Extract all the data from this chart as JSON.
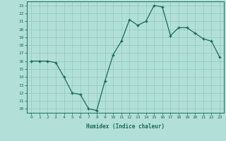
{
  "x": [
    0,
    1,
    2,
    3,
    4,
    5,
    6,
    7,
    8,
    9,
    10,
    11,
    12,
    13,
    14,
    15,
    16,
    17,
    18,
    19,
    20,
    21,
    22,
    23
  ],
  "y": [
    16,
    16,
    16,
    15.8,
    14,
    12,
    11.8,
    10,
    9.8,
    13.5,
    16.8,
    18.5,
    21.2,
    20.5,
    21,
    23,
    22.8,
    19.2,
    20.2,
    20.2,
    19.5,
    18.8,
    18.5,
    16.5
  ],
  "xlabel": "Humidex (Indice chaleur)",
  "ylabel": "",
  "xlim": [
    -0.5,
    23.5
  ],
  "ylim": [
    9.5,
    23.5
  ],
  "yticks": [
    10,
    11,
    12,
    13,
    14,
    15,
    16,
    17,
    18,
    19,
    20,
    21,
    22,
    23
  ],
  "xticks": [
    0,
    1,
    2,
    3,
    4,
    5,
    6,
    7,
    8,
    9,
    10,
    11,
    12,
    13,
    14,
    15,
    16,
    17,
    18,
    19,
    20,
    21,
    22,
    23
  ],
  "line_color": "#1a6b5a",
  "marker_color": "#1a6b5a",
  "bg_color": "#b2e0d8",
  "grid_color": "#8fc9be",
  "label_color": "#1a6b5a",
  "tick_color": "#1a6b5a"
}
